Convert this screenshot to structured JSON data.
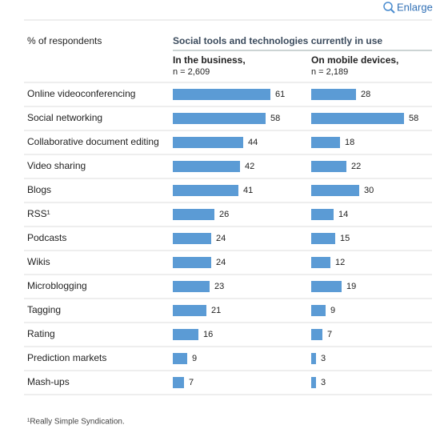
{
  "toolbar": {
    "enlarge": "Enlarge"
  },
  "chart_data": {
    "type": "bar",
    "title": "Social tools and technologies currently in use",
    "y_label": "% of respondents",
    "categories": [
      "Online videoconferencing",
      "Social networking",
      "Collaborative document editing",
      "Video sharing",
      "Blogs",
      "RSS¹",
      "Podcasts",
      "Wikis",
      "Microblogging",
      "Tagging",
      "Rating",
      "Prediction markets",
      "Mash-ups"
    ],
    "series": [
      {
        "name": "In the business,",
        "note": "n = 2,609",
        "color": "#5b9bd5",
        "values": [
          61,
          58,
          44,
          42,
          41,
          26,
          24,
          24,
          23,
          21,
          16,
          9,
          7
        ]
      },
      {
        "name": "On mobile devices,",
        "note": "n = 2,189",
        "color": "#5b9bd5",
        "values": [
          28,
          58,
          18,
          22,
          30,
          14,
          15,
          12,
          19,
          9,
          7,
          3,
          3
        ]
      }
    ],
    "footnote": "¹Really Simple Syndication."
  }
}
